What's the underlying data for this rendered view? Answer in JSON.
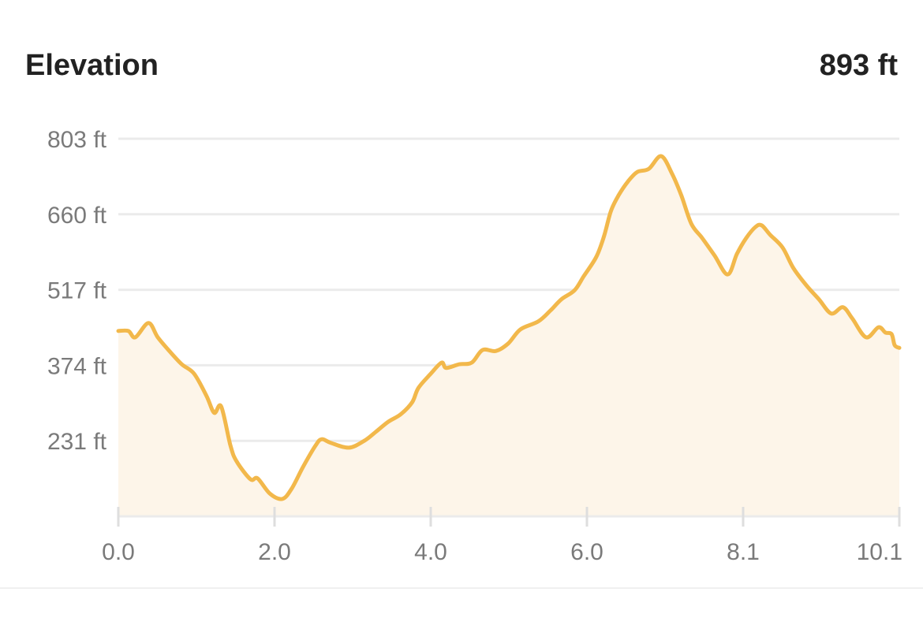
{
  "header": {
    "title": "Elevation",
    "value": "893 ft"
  },
  "colors": {
    "line": "#F2B84B",
    "fill": "#FDF5E9",
    "grid": "#EBEBEB",
    "label": "#7A7A7A"
  },
  "chart_data": {
    "type": "area",
    "title": "Elevation",
    "xlabel": "",
    "ylabel": "",
    "grid": true,
    "ylim": [
      88,
      803
    ],
    "xlim": [
      0.0,
      10.1
    ],
    "y_ticks": [
      {
        "value": 803,
        "label": "803 ft"
      },
      {
        "value": 660,
        "label": "660 ft"
      },
      {
        "value": 517,
        "label": "517 ft"
      },
      {
        "value": 374,
        "label": "374 ft"
      },
      {
        "value": 231,
        "label": "231 ft"
      }
    ],
    "x_ticks": [
      {
        "value": 0.0,
        "label": "0.0"
      },
      {
        "value": 2.02,
        "label": "2.0"
      },
      {
        "value": 4.04,
        "label": "4.0"
      },
      {
        "value": 6.06,
        "label": "6.0"
      },
      {
        "value": 8.08,
        "label": "8.1"
      },
      {
        "value": 10.1,
        "label": "10.1"
      }
    ],
    "x": [
      0.0,
      0.13,
      0.22,
      0.39,
      0.51,
      0.66,
      0.82,
      0.98,
      1.14,
      1.24,
      1.33,
      1.45,
      1.53,
      1.71,
      1.8,
      1.96,
      2.12,
      2.24,
      2.39,
      2.55,
      2.63,
      2.75,
      2.98,
      3.18,
      3.33,
      3.49,
      3.65,
      3.8,
      3.88,
      4.04,
      4.18,
      4.24,
      4.41,
      4.57,
      4.71,
      4.88,
      5.04,
      5.2,
      5.43,
      5.59,
      5.73,
      5.9,
      6.02,
      6.18,
      6.28,
      6.37,
      6.47,
      6.59,
      6.71,
      6.86,
      7.02,
      7.16,
      7.28,
      7.41,
      7.55,
      7.71,
      7.88,
      8.0,
      8.12,
      8.24,
      8.32,
      8.43,
      8.59,
      8.73,
      8.9,
      9.06,
      9.22,
      9.37,
      9.49,
      9.67,
      9.83,
      9.92,
      10.0,
      10.04,
      10.1
    ],
    "y": [
      439,
      439,
      427,
      454,
      427,
      401,
      376,
      358,
      316,
      284,
      296,
      222,
      192,
      158,
      160,
      131,
      121,
      140,
      182,
      222,
      234,
      227,
      218,
      231,
      248,
      267,
      281,
      304,
      331,
      358,
      379,
      369,
      376,
      379,
      403,
      401,
      415,
      442,
      457,
      478,
      499,
      516,
      543,
      579,
      618,
      666,
      696,
      722,
      740,
      746,
      770,
      737,
      696,
      642,
      615,
      582,
      546,
      585,
      615,
      636,
      639,
      621,
      597,
      558,
      525,
      499,
      472,
      484,
      463,
      427,
      446,
      436,
      433,
      412,
      407
    ]
  }
}
